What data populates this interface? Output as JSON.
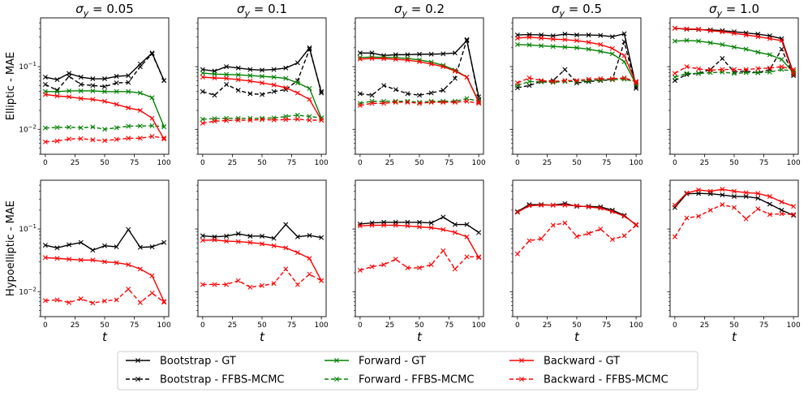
{
  "figure": {
    "row_labels": [
      "Elliptic - MAE",
      "Hypoelliptic - MAE"
    ],
    "column_titles": [
      "σy = 0.05",
      "σy = 0.1",
      "σy = 0.2",
      "σy = 0.5",
      "σy = 1.0"
    ],
    "title_symbol": "σ",
    "title_subscript": "y",
    "sigma_values": [
      "0.05",
      "0.1",
      "0.2",
      "0.5",
      "1.0"
    ],
    "xlabel": "t"
  },
  "chart_data": {
    "type": "line",
    "yscale": "log",
    "ylim": [
      0.004,
      0.6
    ],
    "xlim": [
      -4,
      104
    ],
    "x_ticks": [
      0,
      25,
      50,
      75,
      100
    ],
    "y_tick_labels": [
      {
        "value": 0.01,
        "base": "10",
        "exp": "−2"
      },
      {
        "value": 0.1,
        "base": "10",
        "exp": "−1"
      }
    ],
    "x": [
      0,
      10,
      20,
      30,
      40,
      50,
      60,
      70,
      80,
      90,
      100
    ],
    "legend": {
      "position": "bottom-center",
      "entries": [
        {
          "label": "Bootstrap - GT",
          "color": "#000000",
          "dashed": false
        },
        {
          "label": "Bootstrap - FFBS-MCMC",
          "color": "#000000",
          "dashed": true
        },
        {
          "label": "Forward - GT",
          "color": "#008000",
          "dashed": false
        },
        {
          "label": "Forward - FFBS-MCMC",
          "color": "#008000",
          "dashed": true
        },
        {
          "label": "Backward - GT",
          "color": "#ff0000",
          "dashed": false
        },
        {
          "label": "Backward - FFBS-MCMC",
          "color": "#ff0000",
          "dashed": true
        }
      ]
    },
    "panels": [
      {
        "row": "Elliptic",
        "sigma_y": "0.05",
        "series": [
          {
            "name": "Bootstrap - GT",
            "values": [
              0.068,
              0.062,
              0.078,
              0.068,
              0.064,
              0.064,
              0.07,
              0.072,
              0.11,
              0.165,
              0.06
            ]
          },
          {
            "name": "Bootstrap - FFBS-MCMC",
            "values": [
              0.052,
              0.042,
              0.07,
              0.052,
              0.05,
              0.048,
              0.055,
              0.056,
              0.1,
              0.16,
              0.06
            ]
          },
          {
            "name": "Forward - GT",
            "values": [
              0.04,
              0.04,
              0.041,
              0.041,
              0.041,
              0.04,
              0.04,
              0.04,
              0.038,
              0.032,
              0.011
            ]
          },
          {
            "name": "Forward - FFBS-MCMC",
            "values": [
              0.0105,
              0.0107,
              0.0108,
              0.0106,
              0.0109,
              0.01,
              0.0106,
              0.0112,
              0.0113,
              0.0114,
              0.011
            ]
          },
          {
            "name": "Backward - GT",
            "values": [
              0.036,
              0.034,
              0.033,
              0.031,
              0.03,
              0.028,
              0.025,
              0.022,
              0.02,
              0.015,
              0.007
            ]
          },
          {
            "name": "Backward - FFBS-MCMC",
            "values": [
              0.0063,
              0.0065,
              0.007,
              0.0071,
              0.0068,
              0.0066,
              0.0069,
              0.0072,
              0.0072,
              0.0077,
              0.0073
            ]
          }
        ]
      },
      {
        "row": "Elliptic",
        "sigma_y": "0.1",
        "series": [
          {
            "name": "Bootstrap - GT",
            "values": [
              0.09,
              0.085,
              0.1,
              0.095,
              0.09,
              0.088,
              0.09,
              0.095,
              0.115,
              0.2,
              0.038
            ]
          },
          {
            "name": "Bootstrap - FFBS-MCMC",
            "values": [
              0.04,
              0.035,
              0.052,
              0.042,
              0.037,
              0.036,
              0.04,
              0.043,
              0.06,
              0.19,
              0.04
            ]
          },
          {
            "name": "Forward - GT",
            "values": [
              0.079,
              0.076,
              0.075,
              0.074,
              0.072,
              0.07,
              0.068,
              0.065,
              0.055,
              0.045,
              0.015
            ]
          },
          {
            "name": "Forward - FFBS-MCMC",
            "values": [
              0.0145,
              0.0148,
              0.015,
              0.015,
              0.015,
              0.015,
              0.0152,
              0.016,
              0.0168,
              0.016,
              0.0152
            ]
          },
          {
            "name": "Backward - GT",
            "values": [
              0.068,
              0.066,
              0.065,
              0.062,
              0.059,
              0.055,
              0.051,
              0.046,
              0.038,
              0.03,
              0.014
            ]
          },
          {
            "name": "Backward - FFBS-MCMC",
            "values": [
              0.0125,
              0.0135,
              0.0138,
              0.014,
              0.014,
              0.0143,
              0.0141,
              0.0143,
              0.0145,
              0.014,
              0.014
            ]
          }
        ]
      },
      {
        "row": "Elliptic",
        "sigma_y": "0.2",
        "series": [
          {
            "name": "Bootstrap - GT",
            "values": [
              0.165,
              0.165,
              0.15,
              0.155,
              0.155,
              0.158,
              0.158,
              0.16,
              0.165,
              0.26,
              0.033
            ]
          },
          {
            "name": "Bootstrap - FFBS-MCMC",
            "values": [
              0.037,
              0.035,
              0.05,
              0.043,
              0.037,
              0.035,
              0.038,
              0.042,
              0.065,
              0.27,
              0.03
            ]
          },
          {
            "name": "Forward - GT",
            "values": [
              0.14,
              0.142,
              0.141,
              0.139,
              0.135,
              0.128,
              0.118,
              0.105,
              0.088,
              0.068,
              0.028
            ]
          },
          {
            "name": "Forward - FFBS-MCMC",
            "values": [
              0.026,
              0.028,
              0.028,
              0.028,
              0.028,
              0.027,
              0.028,
              0.028,
              0.028,
              0.031,
              0.028
            ]
          },
          {
            "name": "Backward - GT",
            "values": [
              0.132,
              0.135,
              0.134,
              0.131,
              0.127,
              0.12,
              0.11,
              0.1,
              0.085,
              0.068,
              0.027
            ]
          },
          {
            "name": "Backward - FFBS-MCMC",
            "values": [
              0.024,
              0.026,
              0.026,
              0.027,
              0.027,
              0.026,
              0.027,
              0.027,
              0.027,
              0.028,
              0.026
            ]
          }
        ]
      },
      {
        "row": "Elliptic",
        "sigma_y": "0.5",
        "series": [
          {
            "name": "Bootstrap - GT",
            "values": [
              0.32,
              0.325,
              0.32,
              0.31,
              0.33,
              0.32,
              0.32,
              0.315,
              0.3,
              0.335,
              0.048
            ]
          },
          {
            "name": "Bootstrap - FFBS-MCMC",
            "values": [
              0.046,
              0.05,
              0.058,
              0.06,
              0.09,
              0.055,
              0.058,
              0.06,
              0.062,
              0.25,
              0.045
            ]
          },
          {
            "name": "Forward - GT",
            "values": [
              0.225,
              0.222,
              0.215,
              0.21,
              0.205,
              0.2,
              0.19,
              0.175,
              0.16,
              0.12,
              0.052
            ]
          },
          {
            "name": "Forward - FFBS-MCMC",
            "values": [
              0.05,
              0.058,
              0.057,
              0.056,
              0.058,
              0.058,
              0.06,
              0.061,
              0.062,
              0.063,
              0.057
            ]
          },
          {
            "name": "Backward - GT",
            "values": [
              0.285,
              0.295,
              0.285,
              0.275,
              0.27,
              0.26,
              0.245,
              0.225,
              0.195,
              0.15,
              0.055
            ]
          },
          {
            "name": "Backward - FFBS-MCMC",
            "values": [
              0.055,
              0.066,
              0.06,
              0.058,
              0.06,
              0.06,
              0.063,
              0.064,
              0.064,
              0.066,
              0.058
            ]
          }
        ]
      },
      {
        "row": "Elliptic",
        "sigma_y": "1.0",
        "series": [
          {
            "name": "Bootstrap - GT",
            "values": [
              0.41,
              0.395,
              0.39,
              0.385,
              0.375,
              0.36,
              0.345,
              0.33,
              0.31,
              0.28,
              0.078
            ]
          },
          {
            "name": "Bootstrap - FFBS-MCMC",
            "values": [
              0.06,
              0.075,
              0.078,
              0.09,
              0.135,
              0.082,
              0.085,
              0.08,
              0.09,
              0.19,
              0.072
            ]
          },
          {
            "name": "Forward - GT",
            "values": [
              0.255,
              0.262,
              0.256,
              0.24,
              0.225,
              0.205,
              0.19,
              0.17,
              0.155,
              0.13,
              0.08
            ]
          },
          {
            "name": "Forward - FFBS-MCMC",
            "values": [
              0.068,
              0.078,
              0.078,
              0.08,
              0.082,
              0.078,
              0.08,
              0.08,
              0.082,
              0.09,
              0.085
            ]
          },
          {
            "name": "Backward - GT",
            "values": [
              0.41,
              0.4,
              0.395,
              0.375,
              0.36,
              0.34,
              0.32,
              0.3,
              0.28,
              0.26,
              0.075
            ]
          },
          {
            "name": "Backward - FFBS-MCMC",
            "values": [
              0.078,
              0.1,
              0.092,
              0.088,
              0.09,
              0.09,
              0.09,
              0.093,
              0.095,
              0.1,
              0.09
            ]
          }
        ]
      },
      {
        "row": "Hypoelliptic",
        "sigma_y": "0.05",
        "series": [
          {
            "name": "Bootstrap - GT",
            "values": [
              0.055,
              0.05,
              0.056,
              0.061,
              0.046,
              0.054,
              0.052,
              0.098,
              0.051,
              0.052,
              0.061
            ]
          },
          {
            "name": "Backward - GT",
            "values": [
              0.035,
              0.034,
              0.033,
              0.032,
              0.032,
              0.03,
              0.029,
              0.027,
              0.023,
              0.018,
              0.007
            ]
          },
          {
            "name": "Backward - FFBS-MCMC",
            "values": [
              0.0072,
              0.0074,
              0.0067,
              0.0077,
              0.0066,
              0.0071,
              0.0074,
              0.011,
              0.0067,
              0.0095,
              0.0068
            ]
          }
        ]
      },
      {
        "row": "Hypoelliptic",
        "sigma_y": "0.1",
        "series": [
          {
            "name": "Bootstrap - GT",
            "values": [
              0.078,
              0.075,
              0.077,
              0.084,
              0.077,
              0.077,
              0.071,
              0.118,
              0.075,
              0.079,
              0.073
            ]
          },
          {
            "name": "Backward - GT",
            "values": [
              0.066,
              0.067,
              0.064,
              0.063,
              0.061,
              0.058,
              0.054,
              0.05,
              0.042,
              0.034,
              0.015
            ]
          },
          {
            "name": "Backward - FFBS-MCMC",
            "values": [
              0.013,
              0.013,
              0.013,
              0.015,
              0.0118,
              0.0125,
              0.0135,
              0.023,
              0.013,
              0.019,
              0.015
            ]
          }
        ]
      },
      {
        "row": "Hypoelliptic",
        "sigma_y": "0.2",
        "series": [
          {
            "name": "Bootstrap - GT",
            "values": [
              0.12,
              0.125,
              0.128,
              0.128,
              0.128,
              0.128,
              0.125,
              0.155,
              0.118,
              0.118,
              0.088
            ]
          },
          {
            "name": "Backward - GT",
            "values": [
              0.112,
              0.115,
              0.115,
              0.115,
              0.112,
              0.108,
              0.105,
              0.098,
              0.088,
              0.075,
              0.035
            ]
          },
          {
            "name": "Backward - FFBS-MCMC",
            "values": [
              0.022,
              0.025,
              0.027,
              0.033,
              0.024,
              0.024,
              0.027,
              0.045,
              0.023,
              0.036,
              0.036
            ]
          }
        ]
      },
      {
        "row": "Hypoelliptic",
        "sigma_y": "0.5",
        "series": [
          {
            "name": "Bootstrap - GT",
            "values": [
              0.19,
              0.245,
              0.245,
              0.24,
              0.255,
              0.23,
              0.23,
              0.225,
              0.2,
              0.165,
              0.115
            ]
          },
          {
            "name": "Backward - GT",
            "values": [
              0.185,
              0.235,
              0.24,
              0.24,
              0.24,
              0.235,
              0.225,
              0.215,
              0.19,
              0.16,
              0.118
            ]
          },
          {
            "name": "Backward - FFBS-MCMC",
            "values": [
              0.04,
              0.065,
              0.07,
              0.115,
              0.125,
              0.076,
              0.085,
              0.1,
              0.068,
              0.078,
              0.115
            ]
          }
        ]
      },
      {
        "row": "Hypoelliptic",
        "sigma_y": "1.0",
        "series": [
          {
            "name": "Bootstrap - GT",
            "values": [
              0.22,
              0.365,
              0.37,
              0.365,
              0.35,
              0.33,
              0.33,
              0.31,
              0.25,
              0.2,
              0.165
            ]
          },
          {
            "name": "Backward - GT",
            "values": [
              0.24,
              0.375,
              0.42,
              0.4,
              0.43,
              0.4,
              0.38,
              0.37,
              0.33,
              0.27,
              0.23
            ]
          },
          {
            "name": "Backward - FFBS-MCMC",
            "values": [
              0.075,
              0.15,
              0.16,
              0.2,
              0.245,
              0.22,
              0.145,
              0.21,
              0.17,
              0.175,
              0.17
            ]
          }
        ]
      }
    ]
  }
}
